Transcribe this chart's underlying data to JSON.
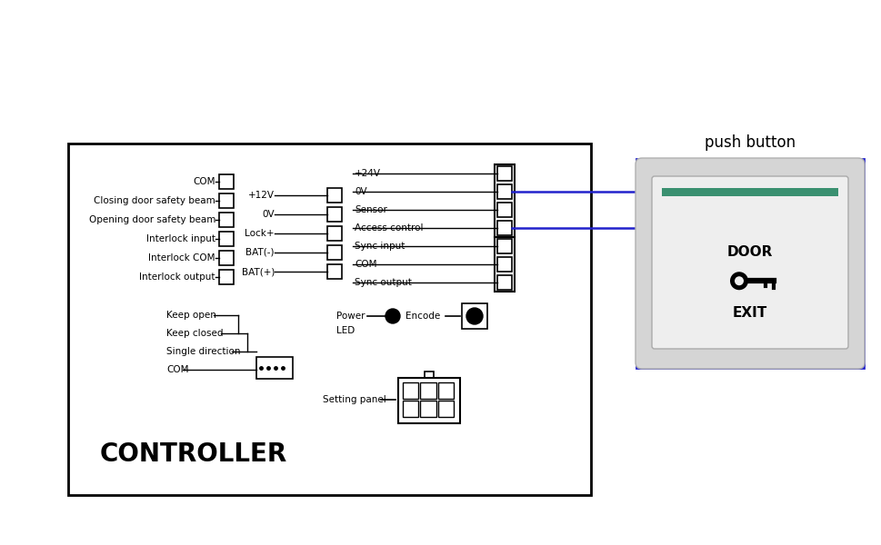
{
  "bg_color": "#ffffff",
  "title": "push button",
  "controller_label": "CONTROLLER",
  "blue_color": "#2222cc",
  "black": "#000000",
  "white": "#ffffff",
  "gray_light": "#e0e0e0",
  "gray_mid": "#c8c8c8",
  "teal": "#40a080",
  "left_labels": [
    "COM",
    "Closing door safety beam",
    "Opening door safety beam",
    "Interlock input",
    "Interlock COM",
    "Interlock output"
  ],
  "mid_labels": [
    "+12V",
    "0V",
    "Lock+",
    "BAT(-)",
    "BAT(+)"
  ],
  "right_labels": [
    "+24V",
    "0V",
    "Sensor",
    "Access control",
    "Sync input",
    "COM",
    "Sync output"
  ],
  "kp_labels": [
    "Keep open",
    "Keep closed",
    "Single direction",
    "COM"
  ]
}
